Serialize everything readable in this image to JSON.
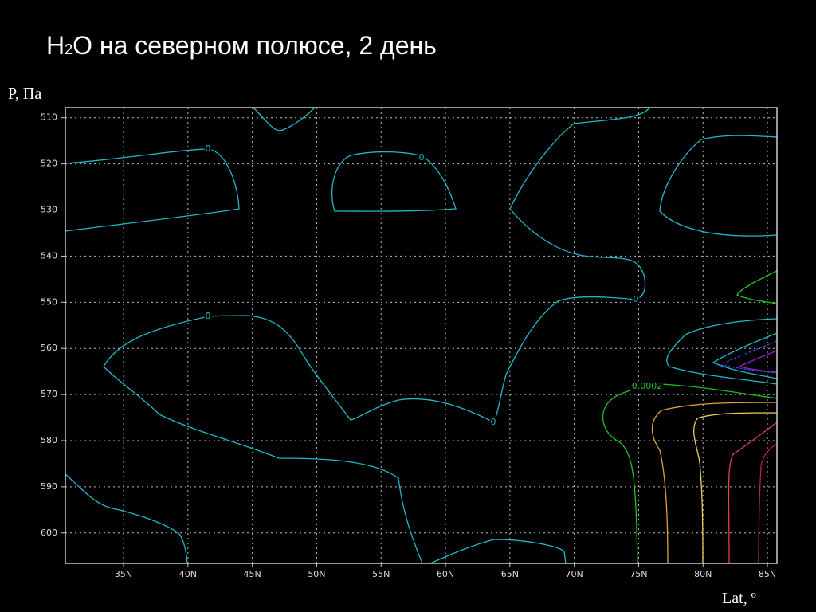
{
  "chart_data": {
    "type": "contour",
    "title": [
      "H",
      "2",
      "O на северном полюсе, 2 день"
    ],
    "y_label": "P, Па",
    "x_label": "Lat, º",
    "xlim": [
      30.48,
      85.74
    ],
    "ylim": [
      606.6,
      507.8
    ],
    "xticks": [
      {
        "value": 35,
        "label": "35N"
      },
      {
        "value": 40,
        "label": "40N"
      },
      {
        "value": 45,
        "label": "45N"
      },
      {
        "value": 50,
        "label": "50N"
      },
      {
        "value": 55,
        "label": "55N"
      },
      {
        "value": 60,
        "label": "60N"
      },
      {
        "value": 65,
        "label": "65N"
      },
      {
        "value": 70,
        "label": "70N"
      },
      {
        "value": 75,
        "label": "75N"
      },
      {
        "value": 80,
        "label": "80N"
      },
      {
        "value": 85,
        "label": "85N"
      }
    ],
    "yticks": [
      510,
      520,
      530,
      540,
      550,
      560,
      570,
      580,
      590,
      600
    ],
    "grid": true,
    "contour_levels": [
      0,
      0,
      0,
      0,
      0,
      0.0002
    ]
  }
}
